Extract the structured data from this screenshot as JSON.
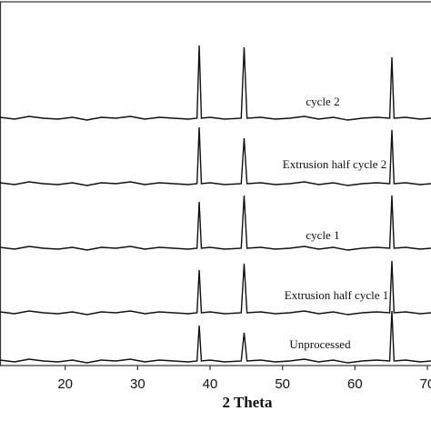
{
  "chart_data": {
    "type": "line",
    "x_label": "2 Theta",
    "x": [
      11,
      13,
      15,
      17,
      19,
      21,
      23,
      25,
      27,
      29,
      31,
      33,
      35,
      37,
      38.2,
      38.5,
      38.8,
      40,
      42,
      44.3,
      44.7,
      45.1,
      47,
      49,
      51,
      53,
      55,
      57,
      59,
      61,
      63,
      64.8,
      65.1,
      65.4,
      67,
      69,
      70.5
    ],
    "xlim": [
      11,
      70.5
    ],
    "xticks": [
      20,
      30,
      40,
      50,
      60,
      70
    ],
    "ylim": [
      0,
      400
    ],
    "series": [
      {
        "name": "cycle 2",
        "color": "#111111",
        "values": [
          273,
          271,
          274,
          272,
          271,
          273,
          270,
          273,
          272,
          274,
          271,
          273,
          272,
          271,
          272,
          352,
          272,
          273,
          271,
          272,
          350,
          272,
          273,
          271,
          272,
          274,
          271,
          273,
          270,
          272,
          273,
          272,
          339,
          272,
          273,
          271,
          272
        ]
      },
      {
        "name": "Extrusion half cycle 2",
        "color": "#111111",
        "values": [
          201,
          199,
          202,
          200,
          199,
          201,
          198,
          201,
          200,
          202,
          199,
          201,
          200,
          199,
          200,
          262,
          200,
          201,
          199,
          200,
          250,
          200,
          201,
          199,
          200,
          202,
          199,
          201,
          198,
          200,
          201,
          200,
          259,
          200,
          201,
          199,
          200
        ]
      },
      {
        "name": "cycle 1",
        "color": "#111111",
        "values": [
          130,
          128,
          131,
          129,
          128,
          130,
          127,
          130,
          129,
          131,
          128,
          130,
          129,
          128,
          129,
          180,
          129,
          130,
          128,
          129,
          187,
          129,
          130,
          128,
          129,
          131,
          128,
          130,
          127,
          129,
          130,
          129,
          187,
          129,
          130,
          128,
          129
        ]
      },
      {
        "name": "Extrusion half cycle 1",
        "color": "#111111",
        "values": [
          59,
          57,
          60,
          58,
          57,
          59,
          56,
          59,
          58,
          60,
          57,
          59,
          58,
          57,
          58,
          105,
          58,
          59,
          57,
          58,
          112,
          58,
          59,
          57,
          58,
          60,
          57,
          59,
          56,
          58,
          59,
          58,
          115,
          58,
          59,
          57,
          58
        ]
      },
      {
        "name": "Unprocessed",
        "color": "#111111",
        "values": [
          6,
          4,
          7,
          5,
          4,
          6,
          3,
          6,
          5,
          7,
          4,
          6,
          5,
          4,
          5,
          44,
          5,
          6,
          4,
          5,
          36,
          5,
          6,
          4,
          5,
          7,
          4,
          6,
          3,
          5,
          6,
          5,
          60,
          5,
          6,
          4,
          5
        ]
      }
    ]
  }
}
